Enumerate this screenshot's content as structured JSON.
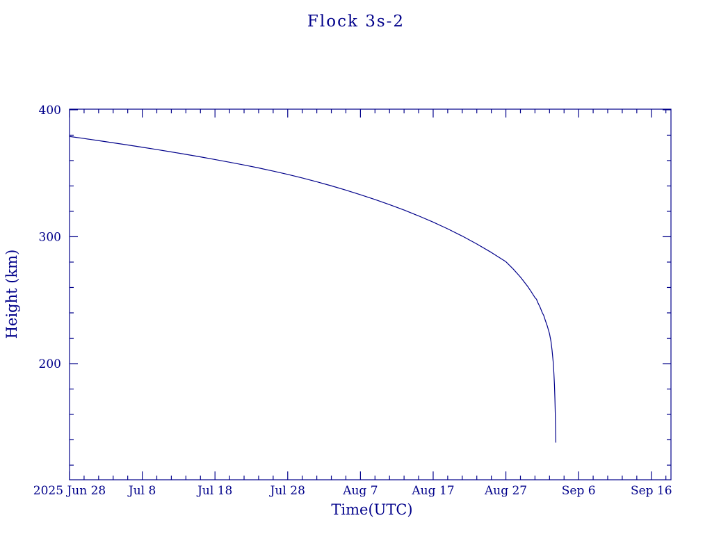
{
  "colors": {
    "line": "#00008a",
    "axis": "#00008a",
    "text": "#00008a",
    "background": "#ffffff"
  },
  "chart_data": {
    "type": "line",
    "title": "Flock 3s-2",
    "xlabel": "Time(UTC)",
    "ylabel": "Height (km)",
    "legend": "none",
    "grid": false,
    "x_axis": {
      "unit": "days since 2025 Jun 28",
      "lim": [
        0,
        82.7
      ],
      "major_tick_days": [
        0,
        10,
        20,
        30,
        40,
        50,
        60,
        70,
        80
      ],
      "tick_labels": [
        "2025 Jun 28",
        "Jul 8",
        "Jul 18",
        "Jul 28",
        "Aug 7",
        "Aug 17",
        "Aug 27",
        "Sep 6",
        "Sep 16"
      ],
      "minor_tick_step_days": 2
    },
    "y_axis": {
      "unit": "km",
      "lim": [
        108.5,
        400.5
      ],
      "major_ticks": [
        200,
        300,
        400
      ],
      "tick_labels": [
        "200",
        "300",
        "400"
      ],
      "minor_tick_step_km": 20
    },
    "series": [
      {
        "name": "Flock 3s-2 height",
        "points_day_km": [
          [
            0,
            379.0
          ],
          [
            2,
            377.4
          ],
          [
            4,
            375.7
          ],
          [
            6,
            374.0
          ],
          [
            8,
            372.3
          ],
          [
            10,
            370.5
          ],
          [
            12,
            368.7
          ],
          [
            14,
            366.8
          ],
          [
            16,
            364.9
          ],
          [
            18,
            362.9
          ],
          [
            20,
            360.8
          ],
          [
            22,
            358.7
          ],
          [
            24,
            356.5
          ],
          [
            26,
            354.2
          ],
          [
            28,
            351.7
          ],
          [
            30,
            349.1
          ],
          [
            32,
            346.3
          ],
          [
            34,
            343.3
          ],
          [
            36,
            340.1
          ],
          [
            38,
            336.7
          ],
          [
            40,
            333.1
          ],
          [
            42,
            329.3
          ],
          [
            44,
            325.3
          ],
          [
            46,
            321.0
          ],
          [
            48,
            316.4
          ],
          [
            50,
            311.5
          ],
          [
            52,
            306.2
          ],
          [
            54,
            300.5
          ],
          [
            56,
            294.3
          ],
          [
            58,
            287.6
          ],
          [
            60,
            280.3
          ],
          [
            61,
            274.6
          ],
          [
            62,
            268.2
          ],
          [
            63,
            260.8
          ],
          [
            63.5,
            256.5
          ],
          [
            64,
            252.0
          ],
          [
            64.2,
            250.8
          ],
          [
            64.4,
            248.0
          ],
          [
            64.7,
            244.5
          ],
          [
            65,
            240.2
          ],
          [
            65.2,
            238.0
          ],
          [
            65.4,
            234.5
          ],
          [
            65.7,
            229.5
          ],
          [
            66,
            223.5
          ],
          [
            66.2,
            217.5
          ],
          [
            66.35,
            210.5
          ],
          [
            66.5,
            201.5
          ],
          [
            66.6,
            192.5
          ],
          [
            66.68,
            183.0
          ],
          [
            66.74,
            172.5
          ],
          [
            66.79,
            161.0
          ],
          [
            66.83,
            149.5
          ],
          [
            66.86,
            140.0
          ],
          [
            66.87,
            138.0
          ]
        ]
      }
    ]
  }
}
